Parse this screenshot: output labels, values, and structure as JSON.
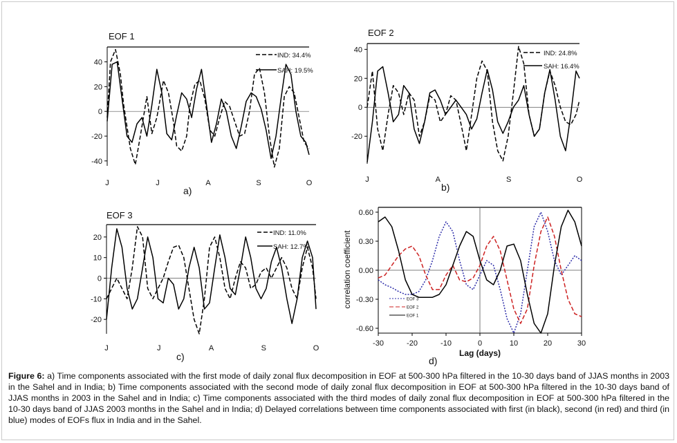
{
  "figure": {
    "caption_label": "Figure 6:",
    "caption_text": " a) Time components associated with the first mode of daily zonal flux decomposition in EOF at 500-300 hPa filtered in the 10-30 days band of JJAS months in 2003 in the Sahel and in India; b) Time components associated with the second mode of daily zonal flux decomposition in EOF at 500-300 hPa filtered in the 10-30 days band of JJAS months in 2003 in the Sahel and in India; c) Time components associated with the third modes of daily zonal flux decomposition in EOF at 500-300 hPa filtered in the 10-30 days band of JJAS 2003 months in the Sahel and in India; d) Delayed correlations between time components associated with first (in black), second (in red) and third (in blue) modes of EOFs flux in India and in the Sahel."
  },
  "chart_data": [
    {
      "type": "line",
      "title": "EOF 1",
      "panel_label": "a)",
      "x_ticks": [
        "J",
        "J",
        "A",
        "S",
        "O"
      ],
      "xlim": [
        0,
        122
      ],
      "ylim": [
        -44,
        52
      ],
      "y_ticks": [
        -40,
        -20,
        0,
        20,
        40
      ],
      "grid": false,
      "legend_position": "top-right",
      "series": [
        {
          "name": "IND: 34.4%",
          "style": "dashed",
          "color": "#000000",
          "x": [
            0,
            2,
            5,
            8,
            10,
            14,
            17,
            20,
            24,
            27,
            30,
            34,
            37,
            40,
            42,
            45,
            48,
            50,
            53,
            56,
            59,
            62,
            65,
            68,
            71,
            74,
            77,
            80,
            83,
            86,
            89,
            92,
            95,
            98,
            101,
            104,
            107,
            110,
            113,
            116,
            119,
            122
          ],
          "y": [
            -5,
            40,
            50,
            30,
            5,
            -30,
            -43,
            -20,
            12,
            -18,
            -5,
            25,
            15,
            -8,
            -28,
            -32,
            -20,
            5,
            22,
            25,
            10,
            -15,
            -20,
            -5,
            8,
            4,
            -8,
            -20,
            -18,
            0,
            30,
            35,
            15,
            -20,
            -45,
            -30,
            12,
            20,
            15,
            -5,
            -25,
            -30
          ]
        },
        {
          "name": "SAH: 19.5%",
          "style": "solid",
          "color": "#000000",
          "x": [
            0,
            3,
            6,
            9,
            12,
            15,
            18,
            21,
            24,
            27,
            30,
            33,
            36,
            39,
            42,
            45,
            48,
            51,
            54,
            57,
            60,
            63,
            66,
            69,
            72,
            75,
            78,
            81,
            84,
            87,
            90,
            93,
            96,
            99,
            102,
            105,
            108,
            111,
            114,
            117,
            120,
            122
          ],
          "y": [
            -8,
            38,
            40,
            10,
            -20,
            -25,
            -10,
            -5,
            -20,
            5,
            34,
            15,
            -18,
            -23,
            -3,
            15,
            10,
            -5,
            18,
            34,
            5,
            -25,
            -10,
            10,
            0,
            -20,
            -30,
            -12,
            8,
            15,
            12,
            2,
            -15,
            -38,
            -20,
            10,
            38,
            30,
            0,
            -20,
            -25,
            -35
          ]
        }
      ]
    },
    {
      "type": "line",
      "title": "EOF 2",
      "panel_label": "b)",
      "x_ticks": [
        "J",
        "A",
        "S",
        "O"
      ],
      "xlim": [
        0,
        122
      ],
      "ylim": [
        -39,
        44
      ],
      "y_ticks": [
        -20,
        0,
        20,
        40
      ],
      "grid": false,
      "legend_position": "top-right",
      "series": [
        {
          "name": "IND: 24.8%",
          "style": "dashed",
          "color": "#000000",
          "x": [
            0,
            3,
            6,
            9,
            12,
            15,
            18,
            21,
            24,
            27,
            30,
            33,
            36,
            39,
            42,
            45,
            48,
            51,
            54,
            57,
            60,
            63,
            66,
            69,
            72,
            75,
            78,
            81,
            84,
            87,
            90,
            93,
            96,
            99,
            102,
            105,
            108,
            111,
            114,
            117,
            120,
            122
          ],
          "y": [
            0,
            25,
            -15,
            -30,
            -5,
            15,
            10,
            -5,
            10,
            5,
            -20,
            -10,
            8,
            5,
            -10,
            -5,
            8,
            5,
            -12,
            -30,
            -5,
            20,
            32,
            25,
            -10,
            -30,
            -37,
            -20,
            10,
            42,
            30,
            -5,
            -20,
            -15,
            10,
            25,
            15,
            0,
            -10,
            -12,
            -5,
            5
          ]
        },
        {
          "name": "SAH: 16.4%",
          "style": "solid",
          "color": "#000000",
          "x": [
            0,
            3,
            6,
            9,
            12,
            15,
            18,
            21,
            24,
            27,
            30,
            33,
            36,
            39,
            42,
            45,
            48,
            51,
            54,
            57,
            60,
            63,
            66,
            69,
            72,
            75,
            78,
            81,
            84,
            87,
            90,
            93,
            96,
            99,
            102,
            105,
            108,
            111,
            114,
            117,
            120,
            122
          ],
          "y": [
            -38,
            -10,
            25,
            28,
            10,
            -10,
            -5,
            15,
            10,
            -15,
            -25,
            -10,
            10,
            12,
            5,
            -5,
            0,
            5,
            0,
            -5,
            -15,
            -8,
            10,
            26,
            12,
            -10,
            -18,
            -10,
            0,
            5,
            15,
            -5,
            -20,
            -15,
            10,
            26,
            5,
            -20,
            -30,
            -5,
            25,
            20
          ]
        }
      ]
    },
    {
      "type": "line",
      "title": "EOF 3",
      "panel_label": "c)",
      "x_ticks": [
        "J",
        "J",
        "A",
        "S",
        "O"
      ],
      "xlim": [
        0,
        122
      ],
      "ylim": [
        -27,
        26
      ],
      "y_ticks": [
        -20,
        -10,
        0,
        10,
        20
      ],
      "grid": false,
      "legend_position": "top-right",
      "series": [
        {
          "name": "IND: 11.0%",
          "style": "dashed",
          "color": "#000000",
          "x": [
            0,
            3,
            6,
            9,
            12,
            15,
            18,
            21,
            24,
            27,
            30,
            33,
            36,
            39,
            42,
            45,
            48,
            51,
            54,
            57,
            60,
            63,
            66,
            69,
            72,
            75,
            78,
            81,
            84,
            87,
            90,
            93,
            96,
            99,
            102,
            105,
            108,
            111,
            114,
            117,
            120,
            122
          ],
          "y": [
            -10,
            -5,
            0,
            -5,
            -10,
            5,
            25,
            20,
            -5,
            -10,
            -5,
            0,
            8,
            15,
            16,
            10,
            -5,
            -20,
            -27,
            -10,
            15,
            20,
            10,
            -5,
            -10,
            0,
            8,
            5,
            -5,
            -3,
            3,
            5,
            0,
            5,
            10,
            5,
            -5,
            -10,
            5,
            15,
            5,
            -10
          ]
        },
        {
          "name": "SAH: 12.7%",
          "style": "solid",
          "color": "#000000",
          "x": [
            0,
            3,
            6,
            9,
            12,
            15,
            18,
            21,
            24,
            27,
            30,
            33,
            36,
            39,
            42,
            45,
            48,
            51,
            54,
            57,
            60,
            63,
            66,
            69,
            72,
            75,
            78,
            81,
            84,
            87,
            90,
            93,
            96,
            99,
            102,
            105,
            108,
            111,
            114,
            117,
            120,
            122
          ],
          "y": [
            -20,
            5,
            24,
            15,
            -5,
            -15,
            -10,
            5,
            20,
            10,
            -10,
            -12,
            0,
            -3,
            -15,
            -10,
            5,
            15,
            5,
            -15,
            -12,
            5,
            21,
            10,
            -5,
            -8,
            5,
            20,
            10,
            -5,
            -10,
            -5,
            8,
            15,
            5,
            -10,
            -22,
            -10,
            10,
            18,
            10,
            -15
          ]
        }
      ]
    },
    {
      "type": "line",
      "title": "",
      "panel_label": "d)",
      "xlabel": "Lag (days)",
      "ylabel": "correlation coefficient",
      "xlim": [
        -30,
        30
      ],
      "ylim": [
        -0.65,
        0.65
      ],
      "x_ticks": [
        -30,
        -20,
        -10,
        0,
        10,
        20,
        30
      ],
      "y_ticks": [
        "0.60",
        "0.30",
        "0.00",
        "-0.30",
        "-0.60"
      ],
      "y_tick_values": [
        0.6,
        0.3,
        0,
        -0.3,
        -0.6
      ],
      "grid": false,
      "zero_lines": true,
      "legend_position": "bottom-left",
      "series": [
        {
          "name": "EOF 3",
          "style": "dotted",
          "color": "#2a2aa8",
          "x": [
            -30,
            -28,
            -26,
            -24,
            -22,
            -20,
            -18,
            -16,
            -14,
            -12,
            -10,
            -8,
            -6,
            -4,
            -2,
            0,
            2,
            4,
            6,
            8,
            10,
            12,
            14,
            16,
            18,
            20,
            22,
            24,
            26,
            28,
            30
          ],
          "y": [
            -0.1,
            -0.15,
            -0.18,
            -0.22,
            -0.25,
            -0.25,
            -0.22,
            -0.1,
            0.1,
            0.35,
            0.5,
            0.4,
            0.1,
            -0.15,
            -0.2,
            -0.05,
            0.1,
            0.05,
            -0.2,
            -0.5,
            -0.65,
            -0.45,
            0.0,
            0.45,
            0.6,
            0.4,
            0.1,
            -0.05,
            0.05,
            0.15,
            0.1
          ]
        },
        {
          "name": "EOF 2",
          "style": "dashed",
          "color": "#cc2020",
          "x": [
            -30,
            -28,
            -26,
            -24,
            -22,
            -20,
            -18,
            -16,
            -14,
            -12,
            -10,
            -8,
            -6,
            -4,
            -2,
            0,
            2,
            4,
            6,
            8,
            10,
            12,
            14,
            16,
            18,
            20,
            22,
            24,
            26,
            28,
            30
          ],
          "y": [
            -0.08,
            -0.05,
            0.05,
            0.15,
            0.22,
            0.25,
            0.15,
            -0.05,
            -0.2,
            -0.2,
            -0.05,
            0.05,
            -0.1,
            -0.12,
            -0.08,
            0.05,
            0.25,
            0.35,
            0.2,
            -0.1,
            -0.4,
            -0.55,
            -0.4,
            0.05,
            0.4,
            0.55,
            0.35,
            0.0,
            -0.3,
            -0.45,
            -0.48
          ]
        },
        {
          "name": "EOF 1",
          "style": "solid",
          "color": "#000000",
          "x": [
            -30,
            -28,
            -26,
            -24,
            -22,
            -20,
            -18,
            -16,
            -14,
            -12,
            -10,
            -8,
            -6,
            -4,
            -2,
            0,
            2,
            4,
            6,
            8,
            10,
            12,
            14,
            16,
            18,
            20,
            22,
            24,
            26,
            28,
            30
          ],
          "y": [
            0.5,
            0.55,
            0.45,
            0.2,
            -0.1,
            -0.25,
            -0.28,
            -0.28,
            -0.28,
            -0.25,
            -0.15,
            0.05,
            0.25,
            0.4,
            0.35,
            0.1,
            -0.1,
            -0.15,
            0.0,
            0.25,
            0.27,
            0.1,
            -0.25,
            -0.55,
            -0.65,
            -0.45,
            0.05,
            0.45,
            0.62,
            0.5,
            0.25
          ]
        }
      ]
    }
  ]
}
